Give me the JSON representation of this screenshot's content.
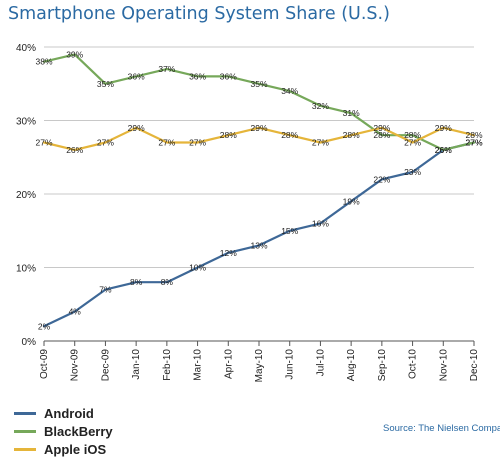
{
  "title": "Smartphone Operating System Share (U.S.)",
  "source": "Source: The Nielsen Company",
  "colors": {
    "title": "#2b6aa3",
    "grid": "#c8c8c8",
    "axis": "#555555"
  },
  "chart_data": {
    "type": "line",
    "title": "Smartphone Operating System Share (U.S.)",
    "xlabel": "",
    "ylabel": "",
    "categories": [
      "Oct-09",
      "Nov-09",
      "Dec-09",
      "Jan-10",
      "Feb-10",
      "Mar-10",
      "Apr-10",
      "May-10",
      "Jun-10",
      "Jul-10",
      "Aug-10",
      "Sep-10",
      "Oct-10",
      "Nov-10",
      "Dec-10"
    ],
    "ylim": [
      0,
      40
    ],
    "yticks": [
      0,
      10,
      20,
      30,
      40
    ],
    "ytick_labels": [
      "0%",
      "10%",
      "20%",
      "30%",
      "40%"
    ],
    "grid": true,
    "legend_position": "bottom-left",
    "series": [
      {
        "name": "Android",
        "color": "#3e6897",
        "values": [
          2,
          4,
          7,
          8,
          8,
          10,
          12,
          13,
          15,
          16,
          19,
          22,
          23,
          26,
          27
        ]
      },
      {
        "name": "BlackBerry",
        "color": "#76a85a",
        "values": [
          38,
          39,
          35,
          36,
          37,
          36,
          36,
          35,
          34,
          32,
          31,
          28,
          28,
          26,
          27
        ]
      },
      {
        "name": "Apple iOS",
        "color": "#e5b53a",
        "values": [
          27,
          26,
          27,
          29,
          27,
          27,
          28,
          29,
          28,
          27,
          28,
          29,
          27,
          29,
          28
        ]
      }
    ]
  }
}
